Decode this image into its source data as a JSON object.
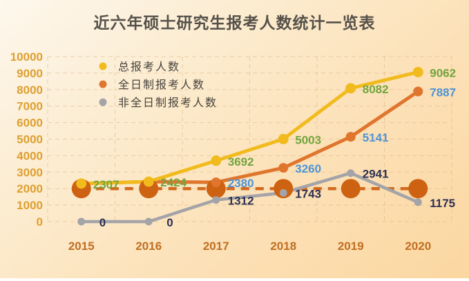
{
  "title": "近六年硕士研究生报考人数统计一览表",
  "chart_data": {
    "type": "line",
    "title": "近六年硕士研究生报考人数统计一览表",
    "categories": [
      "2015",
      "2016",
      "2017",
      "2018",
      "2019",
      "2020"
    ],
    "series": [
      {
        "name": "总报考人数",
        "color": "#f1bb1d",
        "label_color": "#73a53e",
        "values": [
          2307,
          2424,
          3692,
          5003,
          8082,
          9062
        ],
        "labels": [
          "2307",
          "2424",
          "3692",
          "5003",
          "8082",
          "9062"
        ]
      },
      {
        "name": "全日制报考人数",
        "color": "#e0752d",
        "label_color": "#4d94d7",
        "values": [
          2307,
          2424,
          2380,
          3260,
          5141,
          7887
        ],
        "labels": [
          null,
          null,
          "2380",
          "3260",
          "5141",
          "7887"
        ]
      },
      {
        "name": "非全日制报考人数",
        "color": "#a3a3a8",
        "label_color": "#2e3152",
        "values": [
          0,
          0,
          1312,
          1743,
          2941,
          1175
        ],
        "labels": [
          "0",
          "0",
          "1312",
          "1743",
          "2941",
          "1175"
        ]
      }
    ],
    "reference_line": {
      "value": 2000,
      "color": "#d2691e",
      "dot_color": "#cd6212",
      "style": "dashed-with-large-dots"
    },
    "y_axis": {
      "min": 0,
      "max": 10000,
      "step": 1000,
      "tick_labels": [
        "0",
        "1000",
        "2000",
        "3000",
        "4000",
        "5000",
        "6000",
        "7000",
        "8000",
        "9000",
        "10000"
      ],
      "tick_color": "#de9f30"
    },
    "x_axis": {
      "tick_color": "#c06e22"
    },
    "legend": {
      "position": "top-left-inside",
      "text_color": "#47433c"
    },
    "grid": {
      "visible": true,
      "style": "dashed",
      "color": "#d9b485"
    }
  }
}
